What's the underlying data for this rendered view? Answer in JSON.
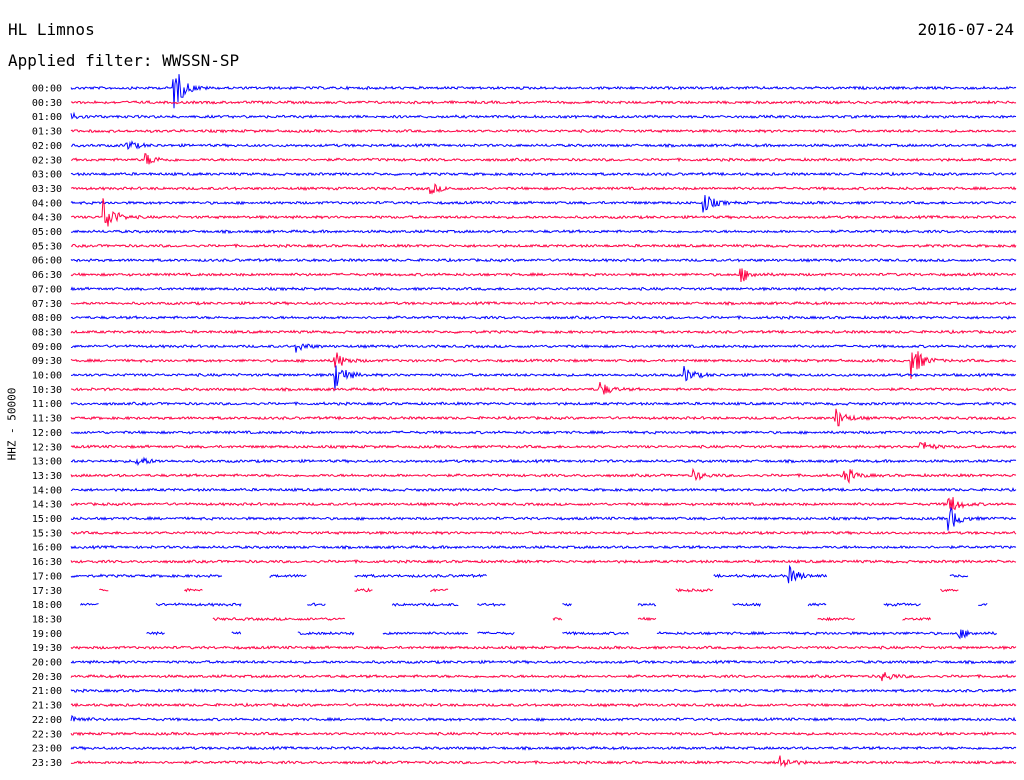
{
  "header": {
    "station": "HL Limnos",
    "date": "2016-07-24",
    "filter_label": "Applied filter: WWSSN-SP"
  },
  "colors": {
    "even_row": "#0000ff",
    "odd_row": "#ff0044"
  },
  "chart_data": {
    "type": "line",
    "title": "HL Limnos",
    "ylabel": "HHZ - 50000",
    "row_labels": [
      "00:00",
      "00:30",
      "01:00",
      "01:30",
      "02:00",
      "02:30",
      "03:00",
      "03:30",
      "04:00",
      "04:30",
      "05:00",
      "05:30",
      "06:00",
      "06:30",
      "07:00",
      "07:30",
      "08:00",
      "08:30",
      "09:00",
      "09:30",
      "10:00",
      "10:30",
      "11:00",
      "11:30",
      "12:00",
      "12:30",
      "13:00",
      "13:30",
      "14:00",
      "14:30",
      "15:00",
      "15:30",
      "16:00",
      "16:30",
      "17:00",
      "17:30",
      "18:00",
      "18:30",
      "19:00",
      "19:30",
      "20:00",
      "20:30",
      "21:00",
      "21:30",
      "22:00",
      "22:30",
      "23:00",
      "23:30"
    ],
    "events": [
      {
        "row": 0,
        "t": 0.11,
        "amp": 22
      },
      {
        "row": 2,
        "t": 0.0,
        "amp": 4
      },
      {
        "row": 4,
        "t": 0.06,
        "amp": 5
      },
      {
        "row": 5,
        "t": 0.08,
        "amp": 6
      },
      {
        "row": 7,
        "t": 0.38,
        "amp": 6
      },
      {
        "row": 8,
        "t": 0.67,
        "amp": 10
      },
      {
        "row": 9,
        "t": 0.035,
        "amp": 20
      },
      {
        "row": 13,
        "t": 0.71,
        "amp": 7
      },
      {
        "row": 18,
        "t": 0.24,
        "amp": 5
      },
      {
        "row": 19,
        "t": 0.28,
        "amp": 9
      },
      {
        "row": 19,
        "t": 0.89,
        "amp": 18
      },
      {
        "row": 20,
        "t": 0.28,
        "amp": 16
      },
      {
        "row": 20,
        "t": 0.65,
        "amp": 8
      },
      {
        "row": 21,
        "t": 0.56,
        "amp": 8
      },
      {
        "row": 23,
        "t": 0.81,
        "amp": 10
      },
      {
        "row": 25,
        "t": 0.9,
        "amp": 6
      },
      {
        "row": 26,
        "t": 0.07,
        "amp": 6
      },
      {
        "row": 27,
        "t": 0.66,
        "amp": 5
      },
      {
        "row": 27,
        "t": 0.82,
        "amp": 8
      },
      {
        "row": 29,
        "t": 0.93,
        "amp": 10
      },
      {
        "row": 30,
        "t": 0.93,
        "amp": 12
      },
      {
        "row": 34,
        "t": 0.76,
        "amp": 9
      },
      {
        "row": 38,
        "t": 0.94,
        "amp": 5
      },
      {
        "row": 41,
        "t": 0.86,
        "amp": 5
      },
      {
        "row": 44,
        "t": 0.0,
        "amp": 5
      },
      {
        "row": 47,
        "t": 0.75,
        "amp": 8
      }
    ],
    "gaps": [
      {
        "row": 34,
        "segments": [
          [
            0,
            0.13
          ],
          [
            0.13,
            0.16
          ],
          [
            0.21,
            0.25
          ],
          [
            0.3,
            0.44
          ],
          [
            0.68,
            0.8
          ],
          [
            0.93,
            0.95
          ]
        ]
      },
      {
        "row": 35,
        "segments": [
          [
            0.03,
            0.04
          ],
          [
            0.12,
            0.14
          ],
          [
            0.3,
            0.32
          ],
          [
            0.38,
            0.4
          ],
          [
            0.64,
            0.68
          ],
          [
            0.92,
            0.94
          ]
        ]
      },
      {
        "row": 36,
        "segments": [
          [
            0.01,
            0.03
          ],
          [
            0.09,
            0.18
          ],
          [
            0.25,
            0.27
          ],
          [
            0.34,
            0.41
          ],
          [
            0.43,
            0.46
          ],
          [
            0.52,
            0.53
          ],
          [
            0.6,
            0.62
          ],
          [
            0.7,
            0.73
          ],
          [
            0.78,
            0.8
          ],
          [
            0.86,
            0.9
          ],
          [
            0.96,
            0.97
          ]
        ]
      },
      {
        "row": 37,
        "segments": [
          [
            0.15,
            0.29
          ],
          [
            0.51,
            0.52
          ],
          [
            0.6,
            0.62
          ],
          [
            0.79,
            0.83
          ],
          [
            0.88,
            0.91
          ]
        ]
      },
      {
        "row": 38,
        "segments": [
          [
            0.08,
            0.1
          ],
          [
            0.17,
            0.18
          ],
          [
            0.24,
            0.3
          ],
          [
            0.33,
            0.42
          ],
          [
            0.43,
            0.47
          ],
          [
            0.52,
            0.59
          ],
          [
            0.62,
            0.93
          ],
          [
            0.93,
            0.98
          ]
        ]
      }
    ]
  }
}
